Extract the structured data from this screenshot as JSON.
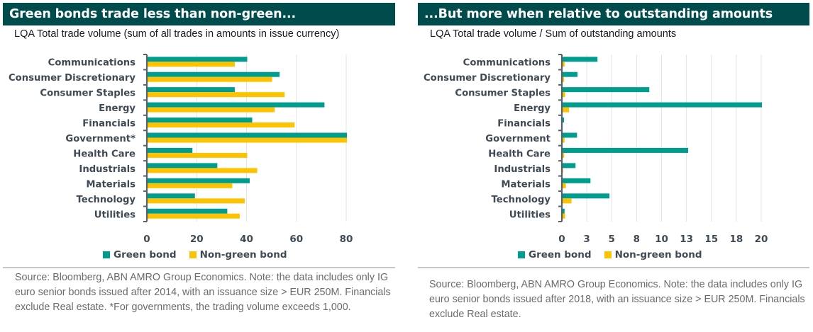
{
  "colors": {
    "header_bg": "#004c4c",
    "green_bond": "#009d8f",
    "non_green_bond": "#fdc300",
    "axis": "#56616c",
    "grid": "#e3e3e3"
  },
  "left_panel": {
    "title": "Green bonds trade less than non-green...",
    "subtitle": "LQA Total trade volume (sum of all trades in amounts in issue currency)",
    "legend": [
      "Green bond",
      "Non-green bond"
    ],
    "source": "Source: Bloomberg, ABN AMRO Group Economics. Note: the data includes only IG euro senior bonds issued after 2014, with an issuance size > EUR 250M. Financials exclude Real estate. *For governments, the trading volume exceeds 1,000."
  },
  "right_panel": {
    "title": "...But more when relative to outstanding amounts",
    "subtitle": "LQA Total trade volume  / Sum of outstanding amounts",
    "legend": [
      "Green bond",
      "Non-green bond"
    ],
    "source": "Source: Bloomberg, ABN AMRO Group Economics. Note: the data includes only  IG euro senior bonds issued after 2018, with an issuance size > EUR 250M. Financials exclude Real estate."
  },
  "chart_data": [
    {
      "type": "bar",
      "orientation": "horizontal",
      "title": "Green bonds trade less than non-green...",
      "subtitle": "LQA Total trade volume (sum of all trades in amounts in issue currency)",
      "categories": [
        "Communications",
        "Consumer Discretionary",
        "Consumer Staples",
        "Energy",
        "Financials",
        "Government*",
        "Health Care",
        "Industrials",
        "Materials",
        "Technology",
        "Utilities"
      ],
      "series": [
        {
          "name": "Green bond",
          "color": "#009d8f",
          "values": [
            40,
            53,
            35,
            71,
            42,
            80,
            18,
            28,
            41,
            19,
            32
          ]
        },
        {
          "name": "Non-green bond",
          "color": "#fdc300",
          "values": [
            35,
            50,
            55,
            51,
            59,
            80,
            40,
            44,
            34,
            39,
            37
          ]
        }
      ],
      "xlim": [
        0,
        80
      ],
      "xticks": [
        0,
        20,
        40,
        60,
        80
      ],
      "xtick_labels": [
        "0",
        "20",
        "40",
        "60",
        "80"
      ],
      "xlabel": "",
      "ylabel": "",
      "grid": true,
      "legend_position": "bottom",
      "annotations": [
        "Government* bars truncated at axis max (trading volume exceeds 1,000)"
      ]
    },
    {
      "type": "bar",
      "orientation": "horizontal",
      "title": "...But more when relative to outstanding amounts",
      "subtitle": "LQA Total trade volume  / Sum of outstanding amounts",
      "categories": [
        "Communications",
        "Consumer Discretionary",
        "Consumer Staples",
        "Energy",
        "Financials",
        "Government",
        "Health Care",
        "Industrials",
        "Materials",
        "Technology",
        "Utilities"
      ],
      "series": [
        {
          "name": "Green bond",
          "color": "#009d8f",
          "values": [
            3.5,
            1.5,
            8.7,
            20.1,
            0.15,
            1.45,
            12.6,
            1.3,
            2.8,
            4.7,
            0.2
          ]
        },
        {
          "name": "Non-green bond",
          "color": "#fdc300",
          "values": [
            0.2,
            0.15,
            0.25,
            0.65,
            0.0,
            0.2,
            0.15,
            0.05,
            0.33,
            0.9,
            0.25
          ]
        }
      ],
      "xlim": [
        0,
        20
      ],
      "xticks": [
        0,
        2.5,
        5,
        7.5,
        10,
        12.5,
        15,
        17.5,
        20
      ],
      "xtick_labels": [
        "0",
        "3",
        "5",
        "8",
        "10",
        "13",
        "15",
        "18",
        "20"
      ],
      "xlabel": "",
      "ylabel": "",
      "grid": true,
      "legend_position": "bottom"
    }
  ]
}
